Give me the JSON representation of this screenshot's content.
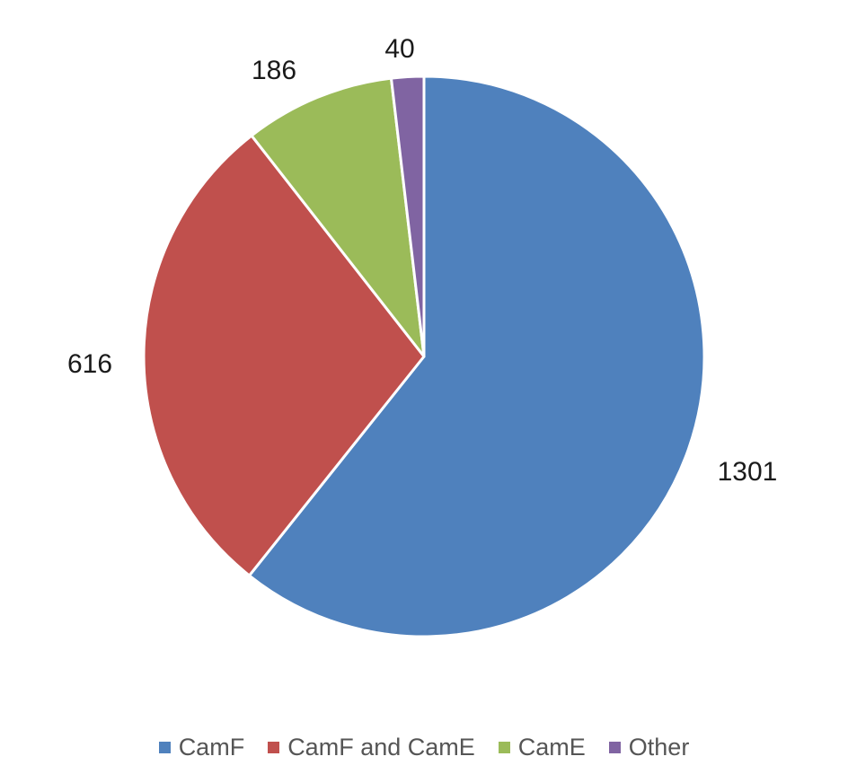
{
  "chart_data": {
    "type": "pie",
    "title": "",
    "categories": [
      "CamF",
      "CamF and CamE",
      "CamE",
      "Other"
    ],
    "values": [
      1301,
      616,
      186,
      40
    ],
    "colors": [
      "#4F81BD",
      "#C0504D",
      "#9BBB59",
      "#8064A2"
    ],
    "data_labels": [
      "1301",
      "616",
      "186",
      "40"
    ],
    "start_angle": "12 o'clock",
    "direction": "clockwise",
    "legend": "bottom"
  }
}
